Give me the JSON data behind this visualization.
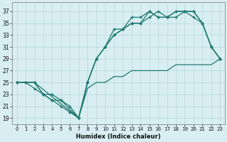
{
  "xlabel": "Humidex (Indice chaleur)",
  "bg_color": "#d8eef2",
  "grid_color": "#b8d8dc",
  "line_color": "#1e7870",
  "xlim": [
    -0.5,
    23.5
  ],
  "ylim": [
    18,
    38.5
  ],
  "xticks": [
    0,
    1,
    2,
    3,
    4,
    5,
    6,
    7,
    8,
    9,
    10,
    11,
    12,
    13,
    14,
    15,
    16,
    17,
    18,
    19,
    20,
    21,
    22,
    23
  ],
  "yticks": [
    19,
    21,
    23,
    25,
    27,
    29,
    31,
    33,
    35,
    37
  ],
  "line1_x": [
    0,
    1,
    2,
    3,
    4,
    5,
    6,
    7,
    8,
    9,
    10,
    11,
    12,
    13,
    14,
    15,
    16,
    17,
    18,
    19,
    20,
    21,
    22,
    23
  ],
  "line1_y": [
    25,
    25,
    25,
    23,
    23,
    22,
    21,
    19,
    25,
    29,
    31,
    33,
    34,
    35,
    35,
    37,
    36,
    36,
    37,
    37,
    37,
    35,
    31,
    29
  ],
  "line2_x": [
    0,
    1,
    2,
    3,
    4,
    5,
    6,
    7,
    8,
    9,
    10,
    11,
    12,
    13,
    14,
    15,
    16,
    17,
    18,
    19,
    20,
    21,
    22,
    23
  ],
  "line2_y": [
    25,
    25,
    24,
    23,
    22,
    21,
    20,
    19,
    25,
    29,
    31,
    33,
    34,
    35,
    35,
    36,
    37,
    36,
    36,
    37,
    37,
    35,
    31,
    29
  ],
  "line3_x": [
    0,
    2,
    3,
    4,
    5,
    7,
    8,
    9,
    10,
    11,
    12,
    13,
    14,
    15,
    16,
    17,
    18,
    19,
    20,
    21,
    22,
    23
  ],
  "line3_y": [
    25,
    25,
    23,
    22,
    22,
    19,
    25,
    29,
    31,
    34,
    34,
    36,
    36,
    37,
    36,
    36,
    37,
    37,
    36,
    35,
    31,
    29
  ],
  "line4_x": [
    0,
    2,
    7,
    8,
    9,
    10,
    11,
    12,
    13,
    14,
    15,
    16,
    17,
    18,
    19,
    20,
    21,
    22,
    23
  ],
  "line4_y": [
    25,
    25,
    19,
    24,
    25,
    25,
    26,
    26,
    27,
    27,
    27,
    27,
    27,
    28,
    28,
    28,
    28,
    28,
    29
  ]
}
